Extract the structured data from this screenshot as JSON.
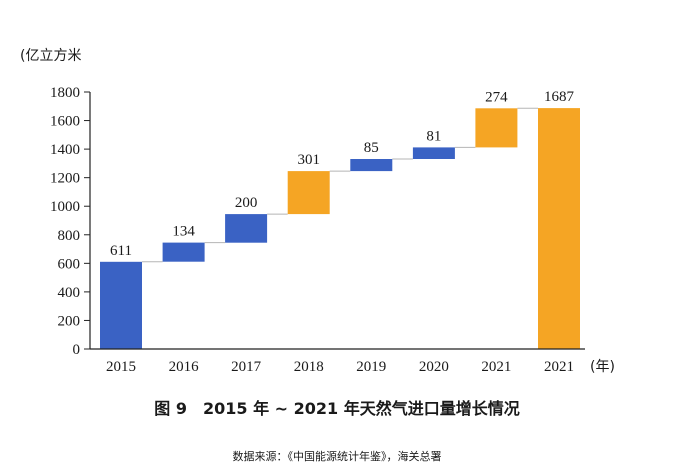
{
  "chart_data": {
    "type": "waterfall",
    "y_unit_label": "(亿立方米",
    "x_unit_label": "(年)",
    "ylim": [
      0,
      1800
    ],
    "yticks": [
      0,
      200,
      400,
      600,
      800,
      1000,
      1200,
      1400,
      1600,
      1800
    ],
    "bars": [
      {
        "category": "2015",
        "start": 0,
        "end": 611,
        "label": "611",
        "kind": "base"
      },
      {
        "category": "2016",
        "start": 611,
        "end": 745,
        "label": "134",
        "kind": "increase"
      },
      {
        "category": "2017",
        "start": 745,
        "end": 945,
        "label": "200",
        "kind": "increase"
      },
      {
        "category": "2018",
        "start": 945,
        "end": 1246,
        "label": "301",
        "kind": "highlight"
      },
      {
        "category": "2019",
        "start": 1246,
        "end": 1331,
        "label": "85",
        "kind": "increase"
      },
      {
        "category": "2020",
        "start": 1331,
        "end": 1412,
        "label": "81",
        "kind": "increase"
      },
      {
        "category": "2021",
        "start": 1412,
        "end": 1686,
        "label": "274",
        "kind": "highlight"
      },
      {
        "category": "2021",
        "start": 0,
        "end": 1687,
        "label": "1687",
        "kind": "total"
      }
    ],
    "colors": {
      "base": "#3a62c4",
      "increase": "#3a62c4",
      "highlight": "#f5a524",
      "total": "#f5a524"
    },
    "caption": "图 9　2015 年 ~ 2021 年天然气进口量增长情况",
    "source": "数据来源：《中国能源统计年鉴》，海关总署"
  }
}
